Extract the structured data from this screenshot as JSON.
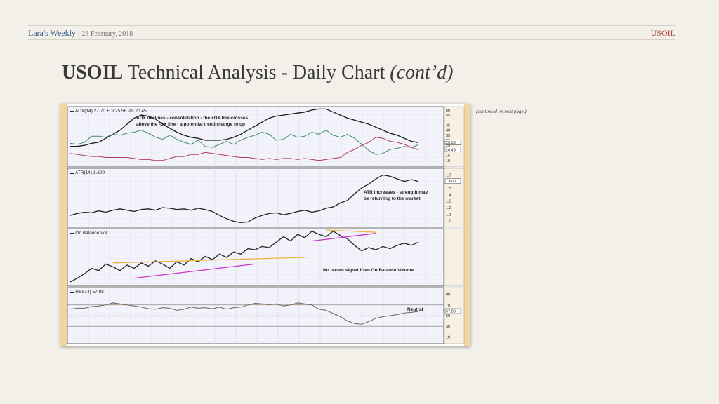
{
  "header": {
    "brand": "Lara's Weekly",
    "separator": "|",
    "date": "23 February, 2018",
    "symbol": "USOIL"
  },
  "slide": {
    "title_bold": "USOIL",
    "title_rest": "Technical Analysis - Daily Chart",
    "title_italic": "(cont’d)"
  },
  "note": "(continued on next page.)",
  "colors": {
    "adx": "#1a1a1a",
    "plus_di": "#3d8a6a",
    "minus_di": "#b23a5a",
    "trend_orange": "#f0b040",
    "trend_magenta": "#cc33cc",
    "rsi_fill": "#c9a98a",
    "axis_bar": "#f2d6a0"
  },
  "chart_data": [
    {
      "type": "line",
      "panel": "adx",
      "title": "ADX(14) 27.70 +DI 25.56 -DI 20.45",
      "annotation_lines": [
        "ADX declines - consolidation - the +DX line crosses",
        "above the -DX line - a potential trend change to up"
      ],
      "ylim": [
        5,
        62
      ],
      "yticks": [
        "60",
        "55",
        "45",
        "40",
        "35",
        "30",
        "25",
        "20",
        "15",
        "10"
      ],
      "axis_value_labels": [
        "27.70",
        "25.56",
        "20.45"
      ],
      "series": [
        {
          "key": "adx",
          "values": [
            24,
            24,
            25,
            27,
            28,
            32,
            36,
            40,
            46,
            52,
            55,
            54,
            51,
            46,
            42,
            38,
            35,
            33,
            32,
            30,
            30,
            30,
            31,
            33,
            36,
            40,
            44,
            48,
            52,
            54,
            55,
            56,
            57,
            58,
            60,
            61,
            61,
            58,
            55,
            52,
            50,
            48,
            46,
            43,
            40,
            37,
            35,
            32,
            29,
            27.7
          ]
        },
        {
          "key": "plus_di",
          "values": [
            27,
            26,
            28,
            34,
            34,
            33,
            36,
            35,
            37,
            38,
            40,
            37,
            33,
            31,
            35,
            31,
            28,
            26,
            30,
            24,
            23,
            26,
            29,
            26,
            30,
            33,
            35,
            38,
            36,
            30,
            31,
            36,
            33,
            34,
            38,
            36,
            40,
            35,
            33,
            36,
            32,
            26,
            20,
            16,
            17,
            21,
            22,
            24,
            23,
            25.56
          ]
        },
        {
          "key": "minus_di",
          "values": [
            17,
            16,
            15,
            14,
            14,
            13,
            13,
            13,
            13,
            12,
            11,
            11,
            10,
            10,
            12,
            14,
            14,
            16,
            16,
            18,
            17,
            16,
            15,
            14,
            13,
            13,
            12,
            11,
            12,
            11,
            12,
            12,
            11,
            12,
            11,
            10,
            11,
            12,
            13,
            18,
            21,
            25,
            28,
            33,
            32,
            29,
            28,
            26,
            23,
            20.45
          ]
        }
      ]
    },
    {
      "type": "line",
      "panel": "atr",
      "title": "ATR(14) 1.600",
      "annotation_lines": [
        "ATR increases - strength may",
        "be returning to the market"
      ],
      "ylim": [
        0.92,
        1.78
      ],
      "yticks": [
        "1.7",
        "1.6",
        "1.5",
        "1.4",
        "1.3",
        "1.2",
        "1.1",
        "1.0"
      ],
      "axis_value_labels": [
        "1.600"
      ],
      "series": [
        {
          "key": "atr",
          "values": [
            1.08,
            1.11,
            1.13,
            1.12,
            1.15,
            1.13,
            1.16,
            1.18,
            1.16,
            1.14,
            1.17,
            1.18,
            1.16,
            1.2,
            1.19,
            1.17,
            1.18,
            1.16,
            1.19,
            1.17,
            1.14,
            1.08,
            1.03,
            0.99,
            0.97,
            0.98,
            1.04,
            1.08,
            1.11,
            1.12,
            1.09,
            1.11,
            1.14,
            1.16,
            1.13,
            1.15,
            1.19,
            1.21,
            1.27,
            1.31,
            1.41,
            1.5,
            1.56,
            1.64,
            1.7,
            1.68,
            1.64,
            1.6,
            1.63,
            1.6
          ]
        }
      ]
    },
    {
      "type": "line",
      "panel": "obv",
      "title": "On Balance Vol",
      "annotation_lines": [
        "No recent signal from On Balance Volume"
      ],
      "ylim": [
        0,
        100
      ],
      "series": [
        {
          "key": "obv",
          "values": [
            5,
            12,
            20,
            30,
            26,
            38,
            33,
            26,
            36,
            30,
            40,
            34,
            44,
            38,
            30,
            42,
            36,
            48,
            42,
            52,
            46,
            56,
            50,
            60,
            56,
            66,
            64,
            70,
            68,
            78,
            88,
            80,
            92,
            86,
            98,
            92,
            88,
            98,
            90,
            84,
            72,
            62,
            68,
            64,
            70,
            66,
            72,
            76,
            72,
            78
          ]
        }
      ],
      "trendlines": [
        {
          "color_key": "trend_orange",
          "points": [
            [
              6,
              40
            ],
            [
              33,
              50
            ]
          ]
        },
        {
          "color_key": "trend_magenta",
          "points": [
            [
              9,
              12
            ],
            [
              26,
              38
            ]
          ]
        },
        {
          "color_key": "trend_orange",
          "points": [
            [
              36,
              100
            ],
            [
              43,
              96
            ]
          ]
        },
        {
          "color_key": "trend_magenta",
          "points": [
            [
              34,
              80
            ],
            [
              43,
              94
            ]
          ]
        }
      ]
    },
    {
      "type": "area",
      "panel": "rsi",
      "title": "RSI(14) 57.88",
      "annotation_lines": [
        "Neutral"
      ],
      "ylim": [
        0,
        100
      ],
      "yticks": [
        "90",
        "70",
        "50",
        "30",
        "10"
      ],
      "reference_lines": [
        70,
        50,
        30
      ],
      "axis_value_labels": [
        "57.88"
      ],
      "series": [
        {
          "key": "rsi",
          "values": [
            62,
            64,
            64,
            67,
            68,
            70,
            74,
            72,
            70,
            68,
            66,
            63,
            62,
            65,
            64,
            60,
            62,
            66,
            64,
            65,
            63,
            66,
            62,
            65,
            66,
            70,
            73,
            72,
            71,
            72,
            68,
            70,
            74,
            72,
            70,
            62,
            60,
            54,
            48,
            40,
            35,
            34,
            39,
            45,
            48,
            50,
            52,
            55,
            56,
            57.88
          ]
        }
      ]
    }
  ]
}
